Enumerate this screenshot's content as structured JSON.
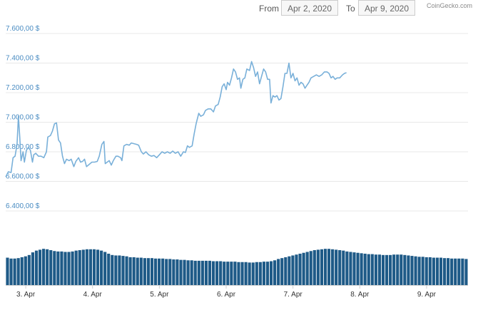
{
  "header": {
    "from_label": "From",
    "from_value": "Apr 2, 2020",
    "to_label": "To",
    "to_value": "Apr 9, 2020",
    "credits": "CoinGecko.com"
  },
  "colors": {
    "price_line": "#79b0d9",
    "volume_bar": "#1e5a87",
    "axis_label": "#4a8cc2",
    "grid": "#e8e8e8"
  },
  "chart_data": {
    "type": "line",
    "title": "",
    "xlabel": "",
    "ylabel": "",
    "grid": true,
    "legend": "none",
    "xlim": [
      2.7,
      9.62
    ],
    "ylim": [
      6400,
      7600
    ],
    "x_ticks": [
      {
        "label": "3. Apr",
        "x": 3
      },
      {
        "label": "4. Apr",
        "x": 4
      },
      {
        "label": "5. Apr",
        "x": 5
      },
      {
        "label": "6. Apr",
        "x": 6
      },
      {
        "label": "7. Apr",
        "x": 7
      },
      {
        "label": "8. Apr",
        "x": 8
      },
      {
        "label": "9. Apr",
        "x": 9
      }
    ],
    "y_ticks": [
      {
        "label": "6.400,00 $",
        "v": 6400
      },
      {
        "label": "6.600,00 $",
        "v": 6600
      },
      {
        "label": "6.800,00 $",
        "v": 6800
      },
      {
        "label": "7.000,00 $",
        "v": 7000
      },
      {
        "label": "7.200,00 $",
        "v": 7200
      },
      {
        "label": "7.400,00 $",
        "v": 7400
      },
      {
        "label": "7.600,00 $",
        "v": 7600
      }
    ],
    "series": [
      {
        "values": [
          [
            2.7,
            6630
          ],
          [
            2.74,
            6665
          ],
          [
            2.78,
            6660
          ],
          [
            2.81,
            6760
          ],
          [
            2.84,
            6770
          ],
          [
            2.87,
            6850
          ],
          [
            2.89,
            7040
          ],
          [
            2.91,
            6900
          ],
          [
            2.93,
            6740
          ],
          [
            2.96,
            6800
          ],
          [
            2.98,
            6730
          ],
          [
            3.01,
            6810
          ],
          [
            3.04,
            6830
          ],
          [
            3.07,
            6810
          ],
          [
            3.1,
            6730
          ],
          [
            3.12,
            6780
          ],
          [
            3.15,
            6790
          ],
          [
            3.19,
            6770
          ],
          [
            3.23,
            6770
          ],
          [
            3.27,
            6760
          ],
          [
            3.31,
            6800
          ],
          [
            3.33,
            6900
          ],
          [
            3.37,
            6910
          ],
          [
            3.4,
            6940
          ],
          [
            3.43,
            6990
          ],
          [
            3.46,
            6995
          ],
          [
            3.49,
            6880
          ],
          [
            3.52,
            6860
          ],
          [
            3.55,
            6770
          ],
          [
            3.58,
            6720
          ],
          [
            3.61,
            6750
          ],
          [
            3.65,
            6740
          ],
          [
            3.68,
            6750
          ],
          [
            3.72,
            6700
          ],
          [
            3.75,
            6735
          ],
          [
            3.79,
            6760
          ],
          [
            3.82,
            6730
          ],
          [
            3.85,
            6735
          ],
          [
            3.88,
            6750
          ],
          [
            3.91,
            6700
          ],
          [
            3.95,
            6715
          ],
          [
            3.99,
            6730
          ],
          [
            4.03,
            6730
          ],
          [
            4.07,
            6735
          ],
          [
            4.1,
            6770
          ],
          [
            4.14,
            6850
          ],
          [
            4.17,
            6870
          ],
          [
            4.19,
            6720
          ],
          [
            4.22,
            6730
          ],
          [
            4.25,
            6740
          ],
          [
            4.28,
            6710
          ],
          [
            4.31,
            6740
          ],
          [
            4.35,
            6770
          ],
          [
            4.38,
            6770
          ],
          [
            4.42,
            6760
          ],
          [
            4.44,
            6740
          ],
          [
            4.47,
            6840
          ],
          [
            4.51,
            6850
          ],
          [
            4.55,
            6845
          ],
          [
            4.58,
            6860
          ],
          [
            4.62,
            6855
          ],
          [
            4.66,
            6850
          ],
          [
            4.69,
            6845
          ],
          [
            4.73,
            6800
          ],
          [
            4.76,
            6785
          ],
          [
            4.8,
            6800
          ],
          [
            4.84,
            6780
          ],
          [
            4.88,
            6770
          ],
          [
            4.92,
            6775
          ],
          [
            4.96,
            6760
          ],
          [
            5.0,
            6780
          ],
          [
            5.04,
            6800
          ],
          [
            5.08,
            6790
          ],
          [
            5.12,
            6800
          ],
          [
            5.16,
            6790
          ],
          [
            5.2,
            6805
          ],
          [
            5.24,
            6790
          ],
          [
            5.28,
            6800
          ],
          [
            5.32,
            6770
          ],
          [
            5.36,
            6800
          ],
          [
            5.39,
            6795
          ],
          [
            5.42,
            6840
          ],
          [
            5.45,
            6830
          ],
          [
            5.49,
            6840
          ],
          [
            5.52,
            6920
          ],
          [
            5.55,
            6990
          ],
          [
            5.59,
            7060
          ],
          [
            5.62,
            7040
          ],
          [
            5.66,
            7050
          ],
          [
            5.69,
            7080
          ],
          [
            5.73,
            7090
          ],
          [
            5.77,
            7090
          ],
          [
            5.81,
            7070
          ],
          [
            5.84,
            7110
          ],
          [
            5.88,
            7120
          ],
          [
            5.91,
            7170
          ],
          [
            5.94,
            7240
          ],
          [
            5.97,
            7260
          ],
          [
            6.0,
            7220
          ],
          [
            6.02,
            7270
          ],
          [
            6.05,
            7250
          ],
          [
            6.08,
            7300
          ],
          [
            6.11,
            7360
          ],
          [
            6.14,
            7340
          ],
          [
            6.17,
            7290
          ],
          [
            6.2,
            7300
          ],
          [
            6.22,
            7230
          ],
          [
            6.25,
            7290
          ],
          [
            6.28,
            7300
          ],
          [
            6.31,
            7360
          ],
          [
            6.35,
            7350
          ],
          [
            6.38,
            7410
          ],
          [
            6.41,
            7370
          ],
          [
            6.44,
            7310
          ],
          [
            6.47,
            7340
          ],
          [
            6.5,
            7260
          ],
          [
            6.53,
            7310
          ],
          [
            6.56,
            7360
          ],
          [
            6.59,
            7340
          ],
          [
            6.62,
            7290
          ],
          [
            6.65,
            7290
          ],
          [
            6.67,
            7130
          ],
          [
            6.7,
            7180
          ],
          [
            6.73,
            7170
          ],
          [
            6.76,
            7180
          ],
          [
            6.79,
            7150
          ],
          [
            6.82,
            7160
          ],
          [
            6.85,
            7240
          ],
          [
            6.88,
            7330
          ],
          [
            6.91,
            7330
          ],
          [
            6.94,
            7400
          ],
          [
            6.97,
            7300
          ],
          [
            7.0,
            7330
          ],
          [
            7.03,
            7280
          ],
          [
            7.06,
            7300
          ],
          [
            7.09,
            7250
          ],
          [
            7.12,
            7270
          ],
          [
            7.15,
            7260
          ],
          [
            7.18,
            7230
          ],
          [
            7.21,
            7250
          ],
          [
            7.24,
            7270
          ],
          [
            7.27,
            7300
          ],
          [
            7.31,
            7310
          ],
          [
            7.35,
            7320
          ],
          [
            7.39,
            7310
          ],
          [
            7.43,
            7320
          ],
          [
            7.47,
            7340
          ],
          [
            7.51,
            7340
          ],
          [
            7.54,
            7330
          ],
          [
            7.57,
            7300
          ],
          [
            7.6,
            7310
          ],
          [
            7.63,
            7290
          ],
          [
            7.66,
            7300
          ],
          [
            7.7,
            7300
          ],
          [
            7.74,
            7320
          ],
          [
            7.77,
            7330
          ],
          [
            7.8,
            7335
          ]
        ]
      }
    ],
    "volume": {
      "note": "relative bar heights (0-1) across the same x range",
      "values": [
        0.62,
        0.6,
        0.6,
        0.61,
        0.63,
        0.65,
        0.68,
        0.74,
        0.78,
        0.8,
        0.82,
        0.81,
        0.79,
        0.77,
        0.76,
        0.76,
        0.75,
        0.75,
        0.76,
        0.78,
        0.79,
        0.8,
        0.81,
        0.81,
        0.81,
        0.8,
        0.78,
        0.75,
        0.71,
        0.68,
        0.67,
        0.67,
        0.66,
        0.65,
        0.63,
        0.63,
        0.62,
        0.62,
        0.61,
        0.61,
        0.61,
        0.6,
        0.6,
        0.6,
        0.59,
        0.59,
        0.58,
        0.58,
        0.57,
        0.57,
        0.56,
        0.56,
        0.55,
        0.55,
        0.55,
        0.55,
        0.55,
        0.54,
        0.54,
        0.54,
        0.53,
        0.53,
        0.53,
        0.53,
        0.52,
        0.52,
        0.52,
        0.51,
        0.51,
        0.52,
        0.52,
        0.53,
        0.53,
        0.54,
        0.56,
        0.59,
        0.61,
        0.63,
        0.65,
        0.67,
        0.69,
        0.71,
        0.73,
        0.75,
        0.77,
        0.79,
        0.8,
        0.81,
        0.82,
        0.82,
        0.81,
        0.8,
        0.79,
        0.78,
        0.76,
        0.75,
        0.74,
        0.73,
        0.72,
        0.71,
        0.7,
        0.7,
        0.69,
        0.69,
        0.68,
        0.68,
        0.68,
        0.69,
        0.69,
        0.69,
        0.68,
        0.67,
        0.66,
        0.65,
        0.64,
        0.64,
        0.63,
        0.63,
        0.62,
        0.62,
        0.62,
        0.61,
        0.61,
        0.6,
        0.6,
        0.6,
        0.6,
        0.59
      ]
    }
  }
}
